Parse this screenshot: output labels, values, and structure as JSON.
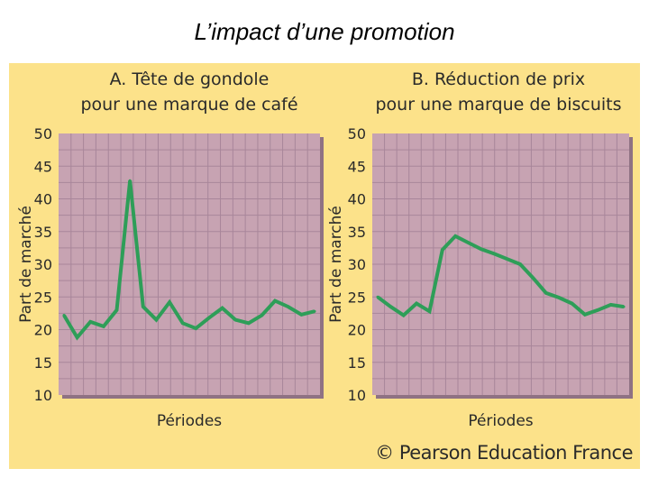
{
  "slide": {
    "title": "L’impact d’une promotion"
  },
  "copyright": "© Pearson Education France",
  "colors": {
    "panel_background": "#fce28a",
    "plot_background": "#c7a3b2",
    "grid_lines": "#a8869a",
    "series_line": "#2e9e58",
    "text": "#2a2a2a"
  },
  "chart_data": [
    {
      "type": "line",
      "title_line1": "A. Tête de gondole",
      "title_line2": "pour une marque de café",
      "xlabel": "Périodes",
      "ylabel": "Part de marché",
      "ylim": [
        10,
        50
      ],
      "yticks": [
        "50",
        "45",
        "40",
        "35",
        "30",
        "25",
        "20",
        "15",
        "10"
      ],
      "x": [
        1,
        2,
        3,
        4,
        5,
        6,
        7,
        8,
        9,
        10,
        11,
        12,
        13,
        14,
        15,
        16,
        17,
        18,
        19,
        20
      ],
      "series": [
        {
          "name": "Café",
          "values": [
            22.2,
            18.8,
            21.2,
            20.5,
            23.0,
            42.8,
            23.5,
            21.5,
            24.2,
            21.0,
            20.2,
            21.8,
            23.3,
            21.5,
            21.0,
            22.2,
            24.4,
            23.5,
            22.3,
            22.8
          ]
        }
      ]
    },
    {
      "type": "line",
      "title_line1": "B. Réduction de prix",
      "title_line2": "pour une marque de biscuits",
      "xlabel": "Périodes",
      "ylabel": "Part de marché",
      "ylim": [
        10,
        50
      ],
      "yticks": [
        "50",
        "45",
        "40",
        "35",
        "30",
        "25",
        "20",
        "15",
        "10"
      ],
      "x": [
        1,
        2,
        3,
        4,
        5,
        6,
        7,
        8,
        9,
        10,
        11,
        12,
        13,
        14,
        15,
        16,
        17,
        18,
        19,
        20
      ],
      "series": [
        {
          "name": "Biscuits",
          "values": [
            25.0,
            23.5,
            22.2,
            24.0,
            22.8,
            32.2,
            34.3,
            33.3,
            32.3,
            31.6,
            30.8,
            30.0,
            27.9,
            25.6,
            24.9,
            24.0,
            22.3,
            23.0,
            23.8,
            23.5
          ]
        }
      ]
    }
  ]
}
